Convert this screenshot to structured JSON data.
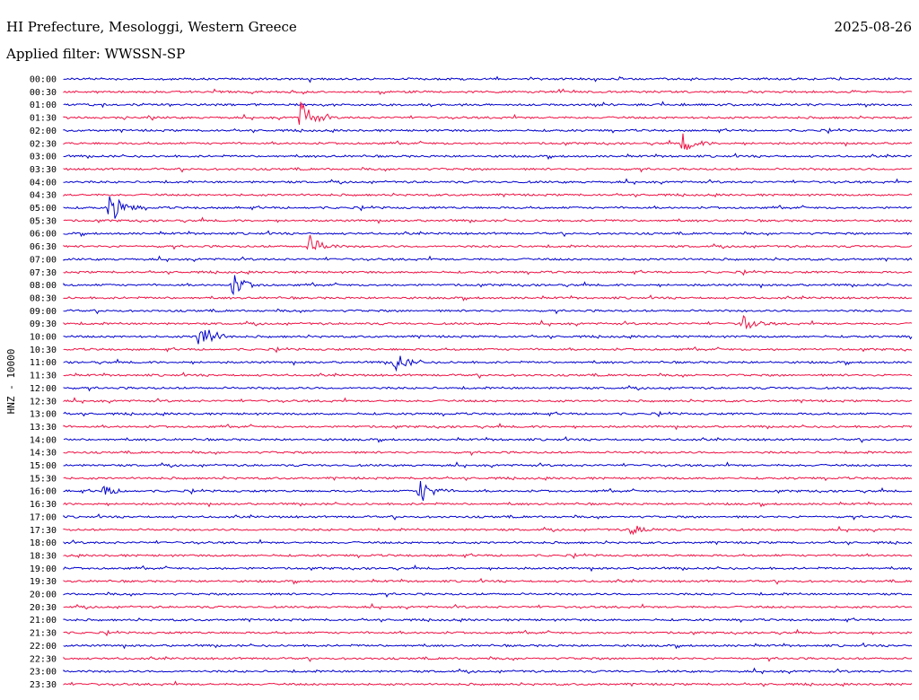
{
  "header": {
    "title": "HI Prefecture, Mesologgi, Western Greece",
    "filter": "Applied filter: WWSSN-SP",
    "date": "2025-08-26"
  },
  "chart_data": {
    "type": "line",
    "ylabel": "HNZ - 10000",
    "colors": [
      "#0000cc",
      "#ee1144"
    ],
    "rows": [
      "00:00",
      "00:30",
      "01:00",
      "01:30",
      "02:00",
      "02:30",
      "03:00",
      "03:30",
      "04:00",
      "04:30",
      "05:00",
      "05:30",
      "06:00",
      "06:30",
      "07:00",
      "07:30",
      "08:00",
      "08:30",
      "09:00",
      "09:30",
      "10:00",
      "10:30",
      "11:00",
      "11:30",
      "12:00",
      "12:30",
      "13:00",
      "13:30",
      "14:00",
      "14:30",
      "15:00",
      "15:30",
      "16:00",
      "16:30",
      "17:00",
      "17:30",
      "18:00",
      "18:30",
      "19:00",
      "19:30",
      "20:00",
      "20:30",
      "21:00",
      "21:30",
      "22:00",
      "22:30",
      "23:00",
      "23:30"
    ],
    "events": [
      {
        "row": 3,
        "x": 0.28,
        "amp": 20
      },
      {
        "row": 5,
        "x": 0.73,
        "amp": 10
      },
      {
        "row": 10,
        "x": 0.055,
        "amp": 18
      },
      {
        "row": 13,
        "x": 0.29,
        "amp": 12
      },
      {
        "row": 16,
        "x": 0.2,
        "amp": 12
      },
      {
        "row": 19,
        "x": 0.8,
        "amp": 9
      },
      {
        "row": 20,
        "x": 0.16,
        "amp": 20
      },
      {
        "row": 22,
        "x": 0.39,
        "amp": 12
      },
      {
        "row": 32,
        "x": 0.42,
        "amp": 14
      },
      {
        "row": 32,
        "x": 0.045,
        "amp": 6
      },
      {
        "row": 35,
        "x": 0.67,
        "amp": 6
      }
    ]
  }
}
